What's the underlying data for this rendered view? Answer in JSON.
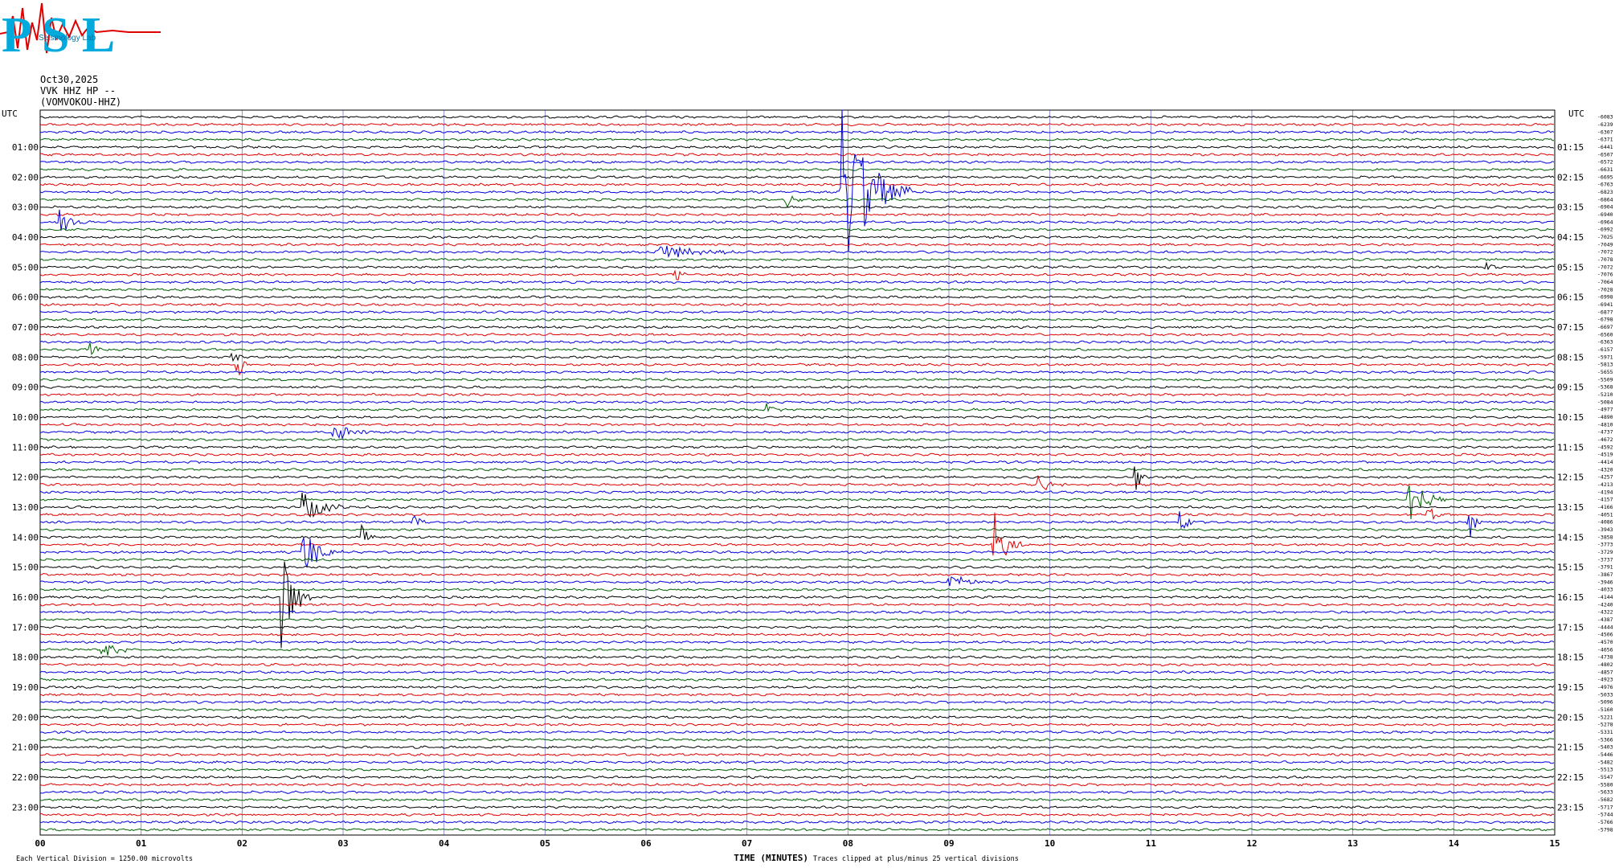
{
  "logo": {
    "text": "PSL",
    "subtitle": "Seismology Lab"
  },
  "header": {
    "date": "Oct30,2025",
    "channel": "VVK HHZ HP --",
    "station": "(VOMVOKOU-HHZ)"
  },
  "footer": {
    "xlabel": "TIME (MINUTES)",
    "scale_note": "Each Vertical Division = 1250.00 microvolts",
    "clip_note": "Traces clipped at plus/minus 25 vertical divisions"
  },
  "chart_data": {
    "type": "line",
    "title": "",
    "xlabel": "TIME (MINUTES)",
    "xlim": [
      0,
      15
    ],
    "x_ticks": [
      "00",
      "01",
      "02",
      "03",
      "04",
      "05",
      "06",
      "07",
      "08",
      "09",
      "10",
      "11",
      "12",
      "13",
      "14",
      "15"
    ],
    "left_corner_label": "UTC",
    "right_corner_label": "UTC",
    "left_hour_labels": [
      "01:00",
      "02:00",
      "03:00",
      "04:00",
      "05:00",
      "06:00",
      "07:00",
      "08:00",
      "09:00",
      "10:00",
      "11:00",
      "12:00",
      "13:00",
      "14:00",
      "15:00",
      "16:00",
      "17:00",
      "18:00",
      "19:00",
      "20:00",
      "21:00",
      "22:00",
      "23:00"
    ],
    "right_hour_labels": [
      "01:15",
      "02:15",
      "03:15",
      "04:15",
      "05:15",
      "06:15",
      "07:15",
      "08:15",
      "09:15",
      "10:15",
      "11:15",
      "12:15",
      "13:15",
      "14:15",
      "15:15",
      "16:15",
      "17:15",
      "18:15",
      "19:15",
      "20:15",
      "21:15",
      "22:15",
      "23:15"
    ],
    "trace_count": 96,
    "trace_colors": [
      "#000000",
      "#e00000",
      "#0000e0",
      "#006000"
    ],
    "trace_offsets": [
      -6083,
      -6239,
      -6307,
      -6371,
      -6441,
      -6507,
      -6572,
      -6631,
      -6695,
      -6763,
      -6823,
      -6864,
      -6904,
      -6940,
      -6964,
      -6992,
      -7025,
      -7049,
      -7072,
      -7078,
      -7072,
      -7076,
      -7064,
      -7028,
      -6998,
      -6941,
      -6877,
      -6798,
      -6697,
      -6560,
      -6363,
      -6157,
      -5971,
      -5813,
      -5655,
      -5509,
      -5368,
      -5210,
      -5084,
      -4977,
      -4890,
      -4810,
      -4737,
      -4672,
      -4592,
      -4519,
      -4414,
      -4320,
      -4257,
      -4213,
      -4194,
      -4157,
      -4166,
      -4051,
      -4086,
      -3943,
      -3858,
      -3773,
      -3729,
      -3737,
      -3791,
      -3867,
      -3946,
      -4033,
      -4144,
      -4240,
      -4322,
      -4387,
      -4444,
      -4506,
      -4570,
      -4656,
      -4738,
      -4802,
      -4857,
      -4923,
      -4976,
      -5033,
      -5096,
      -5160,
      -5221,
      -5278,
      -5331,
      -5366,
      -5403,
      -5446,
      -5482,
      -5513,
      -5547,
      -5580,
      -5633,
      -5682,
      -5717,
      -5744,
      -5766,
      -5798
    ],
    "events": [
      {
        "trace": 3,
        "minute": 13.3,
        "amplitude": 0.8
      },
      {
        "trace": 10,
        "minute": 7.93,
        "amplitude": 14,
        "duration": 0.7
      },
      {
        "trace": 11,
        "minute": 7.4,
        "amplitude": 2
      },
      {
        "trace": 14,
        "minute": 0.2,
        "amplitude": 2,
        "duration": 0.3
      },
      {
        "trace": 18,
        "minute": 6.1,
        "amplitude": 1.5,
        "duration": 0.9
      },
      {
        "trace": 21,
        "minute": 6.3,
        "amplitude": 1.2
      },
      {
        "trace": 20,
        "minute": 14.3,
        "amplitude": 1.2
      },
      {
        "trace": 31,
        "minute": 0.5,
        "amplitude": 1.2
      },
      {
        "trace": 32,
        "minute": 1.9,
        "amplitude": 1.5
      },
      {
        "trace": 33,
        "minute": 1.95,
        "amplitude": 3
      },
      {
        "trace": 39,
        "minute": 7.2,
        "amplitude": 1.5
      },
      {
        "trace": 42,
        "minute": 2.9,
        "amplitude": 1.5,
        "duration": 0.5
      },
      {
        "trace": 48,
        "minute": 10.85,
        "amplitude": 2.5
      },
      {
        "trace": 49,
        "minute": 9.9,
        "amplitude": 1.2,
        "duration": 0.3
      },
      {
        "trace": 51,
        "minute": 13.55,
        "amplitude": 4,
        "duration": 0.4
      },
      {
        "trace": 52,
        "minute": 2.6,
        "amplitude": 2.5,
        "duration": 0.5
      },
      {
        "trace": 53,
        "minute": 13.75,
        "amplitude": 2
      },
      {
        "trace": 54,
        "minute": 3.7,
        "amplitude": 2
      },
      {
        "trace": 54,
        "minute": 11.3,
        "amplitude": 3
      },
      {
        "trace": 54,
        "minute": 14.15,
        "amplitude": 3
      },
      {
        "trace": 56,
        "minute": 3.2,
        "amplitude": 2
      },
      {
        "trace": 57,
        "minute": 9.45,
        "amplitude": 5,
        "duration": 0.3
      },
      {
        "trace": 58,
        "minute": 2.6,
        "amplitude": 4,
        "duration": 0.4
      },
      {
        "trace": 62,
        "minute": 9.0,
        "amplitude": 1.2,
        "duration": 0.6
      },
      {
        "trace": 64,
        "minute": 2.4,
        "amplitude": 8,
        "duration": 0.3
      },
      {
        "trace": 71,
        "minute": 0.6,
        "amplitude": 1.5,
        "duration": 0.4
      }
    ]
  }
}
